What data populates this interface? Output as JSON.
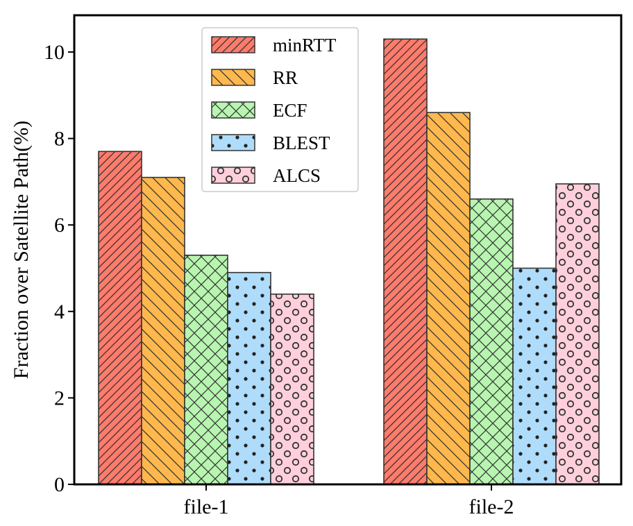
{
  "chart_data": {
    "type": "bar",
    "title": "",
    "xlabel": "",
    "ylabel": "Fraction over Satellite Path(%)",
    "categories": [
      "file-1",
      "file-2"
    ],
    "ylim": [
      0,
      10.85
    ],
    "yticks": [
      0,
      2,
      4,
      6,
      8,
      10
    ],
    "legend_position": "top-center",
    "series": [
      {
        "name": "minRTT",
        "values": [
          7.7,
          10.3
        ],
        "color": "#ff7b6b",
        "pattern": "diagonal-right"
      },
      {
        "name": "RR",
        "values": [
          7.1,
          8.6
        ],
        "color": "#ffb84d",
        "pattern": "diagonal-left"
      },
      {
        "name": "ECF",
        "values": [
          5.3,
          6.6
        ],
        "color": "#b8f5b0",
        "pattern": "crosshatch"
      },
      {
        "name": "BLEST",
        "values": [
          4.9,
          5.0
        ],
        "color": "#aedcfa",
        "pattern": "dots"
      },
      {
        "name": "ALCS",
        "values": [
          4.4,
          6.95
        ],
        "color": "#ffd0dc",
        "pattern": "circles"
      }
    ]
  }
}
